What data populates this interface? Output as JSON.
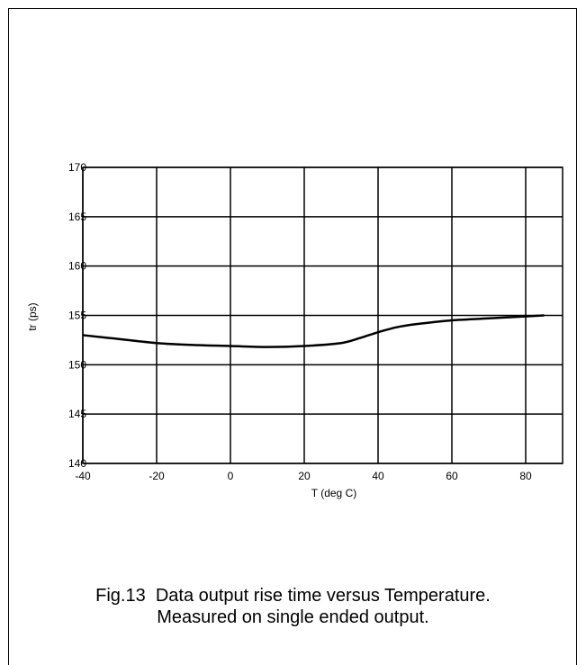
{
  "chart_data": {
    "type": "line",
    "title": "",
    "xlabel": "T (deg C)",
    "ylabel": "tr (ps)",
    "xlim": [
      -40,
      90
    ],
    "ylim": [
      140,
      170
    ],
    "xticks": [
      -40,
      -20,
      0,
      20,
      40,
      60,
      80
    ],
    "yticks": [
      140,
      145,
      150,
      155,
      160,
      165,
      170
    ],
    "grid": true,
    "series": [
      {
        "color": "#000000",
        "x": [
          -40,
          -30,
          -20,
          -10,
          0,
          10,
          20,
          30,
          35,
          40,
          45,
          50,
          60,
          70,
          80,
          85
        ],
        "y": [
          153.0,
          152.6,
          152.2,
          152.0,
          151.9,
          151.8,
          151.9,
          152.2,
          152.7,
          153.3,
          153.8,
          154.1,
          154.5,
          154.7,
          154.9,
          155.0
        ]
      }
    ]
  },
  "caption": {
    "line1": "Fig.13  Data output rise time versus Temperature.",
    "line2": "Measured on single ended output."
  }
}
